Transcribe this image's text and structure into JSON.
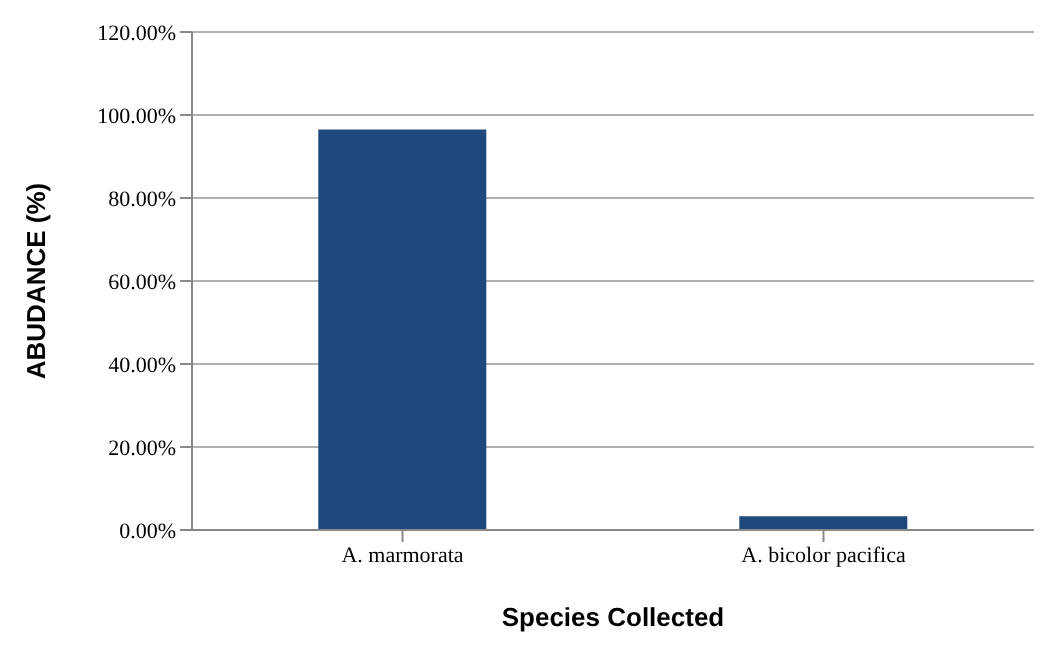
{
  "chart_data": {
    "type": "bar",
    "xlabel": "Species Collected",
    "ylabel": "ABUDANCE (%)",
    "categories": [
      "A. marmorata",
      "A. bicolor pacifica"
    ],
    "series": [
      {
        "color": "#1f497d",
        "values": [
          96.5,
          3.3
        ]
      }
    ],
    "ylim": [
      0,
      120
    ],
    "yticks": [
      {
        "value": 0,
        "label": "0.00%"
      },
      {
        "value": 20,
        "label": "20.00%"
      },
      {
        "value": 40,
        "label": "40.00%"
      },
      {
        "value": 60,
        "label": "60.00%"
      },
      {
        "value": 80,
        "label": "80.00%"
      },
      {
        "value": 100,
        "label": "100.00%"
      },
      {
        "value": 120,
        "label": "120.00%"
      }
    ],
    "grid": "y",
    "legend": false
  }
}
